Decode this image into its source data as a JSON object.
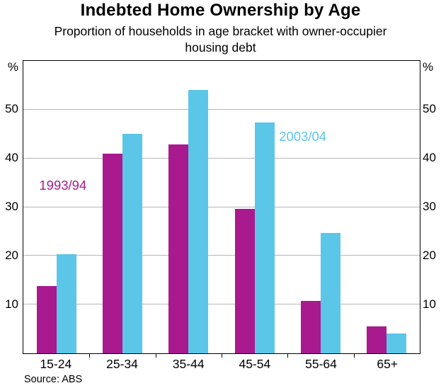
{
  "chart_data": {
    "type": "bar",
    "title": "Indebted Home Ownership by Age",
    "subtitle": "Proportion of households in age bracket with owner-occupier housing debt",
    "source": "Source: ABS",
    "unit": "%",
    "categories": [
      "15-24",
      "25-34",
      "35-44",
      "45-54",
      "55-64",
      "65+"
    ],
    "series": [
      {
        "name": "1993/94",
        "color": "#A81A8E",
        "values": [
          13.8,
          41.0,
          42.8,
          29.7,
          10.7,
          5.5
        ]
      },
      {
        "name": "2003/04",
        "color": "#5BC6E8",
        "values": [
          20.3,
          45.0,
          54.0,
          47.3,
          24.7,
          4.0
        ]
      }
    ],
    "ylim": [
      0,
      60
    ],
    "yticks": [
      10,
      20,
      30,
      40,
      50
    ],
    "grid": true,
    "legend_position": "in-plot labels",
    "annotations": [
      {
        "text": "1993/94",
        "color": "#A81A8E",
        "x_pct": 4.0,
        "y_value": 34.5
      },
      {
        "text": "2003/04",
        "color": "#5BC6E8",
        "x_pct": 64.5,
        "y_value": 44.5
      }
    ]
  }
}
